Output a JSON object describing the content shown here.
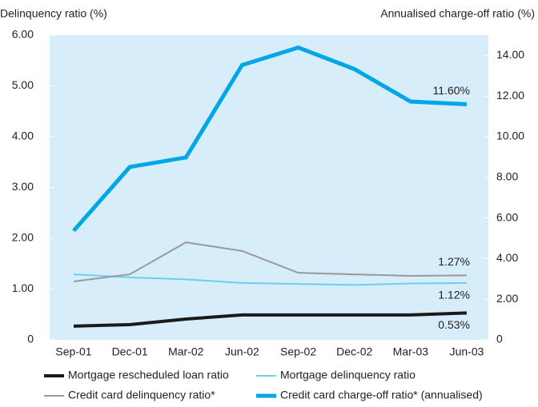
{
  "chart_data": {
    "type": "line",
    "y_label": "Delinquency ratio (%)",
    "y2_label": "Annualised charge-off ratio (%)",
    "categories": [
      "Sep-01",
      "Dec-01",
      "Mar-02",
      "Jun-02",
      "Sep-02",
      "Dec-02",
      "Mar-03",
      "Jun-03"
    ],
    "ylim": [
      0,
      6
    ],
    "yticks": [
      0,
      {
        "value": 1,
        "label": "1.00"
      },
      {
        "value": 2,
        "label": "2.00"
      },
      {
        "value": 3,
        "label": "3.00"
      },
      {
        "value": 4,
        "label": "4.00"
      },
      {
        "value": 5,
        "label": "5.00"
      },
      {
        "value": 6,
        "label": "6.00"
      }
    ],
    "y2lim": [
      0,
      15
    ],
    "y2ticks": [
      0,
      {
        "value": 2,
        "label": "2.00"
      },
      {
        "value": 4,
        "label": "4.00"
      },
      {
        "value": 6,
        "label": "6.00"
      },
      {
        "value": 8,
        "label": "8.00"
      },
      {
        "value": 10,
        "label": "10.00"
      },
      {
        "value": 12,
        "label": "12.00"
      },
      {
        "value": 14,
        "label": "14.00"
      }
    ],
    "background": "#d7eefa",
    "series": [
      {
        "name": "Mortgage rescheduled loan ratio",
        "color": "#1a1a1a",
        "width": 4,
        "values": [
          0.27,
          0.3,
          0.41,
          0.49,
          0.49,
          0.49,
          0.49,
          0.53
        ],
        "value_labels": [
          null,
          null,
          null,
          null,
          null,
          null,
          null,
          "0.53%"
        ]
      },
      {
        "name": "Mortgage delinquency ratio",
        "color": "#6ccff0",
        "width": 2,
        "values": [
          1.29,
          1.23,
          1.19,
          1.12,
          1.1,
          1.08,
          1.11,
          1.12
        ],
        "value_labels": [
          null,
          null,
          null,
          null,
          null,
          null,
          null,
          "1.12%"
        ]
      },
      {
        "name": "Credit card delinquency ratio*",
        "color": "#999999",
        "width": 2,
        "values": [
          1.15,
          1.29,
          1.92,
          1.75,
          1.32,
          1.29,
          1.26,
          1.27
        ],
        "value_labels": [
          null,
          null,
          null,
          null,
          null,
          null,
          null,
          "1.27%"
        ]
      },
      {
        "name": "Credit card charge-off ratio* (annualised)",
        "color": "#00a6e6",
        "width": 5,
        "axis": "y2",
        "values": [
          5.37,
          8.51,
          8.98,
          13.53,
          14.39,
          13.33,
          11.73,
          11.6
        ],
        "value_labels": [
          null,
          null,
          null,
          null,
          null,
          null,
          null,
          "11.60%"
        ]
      }
    ]
  }
}
